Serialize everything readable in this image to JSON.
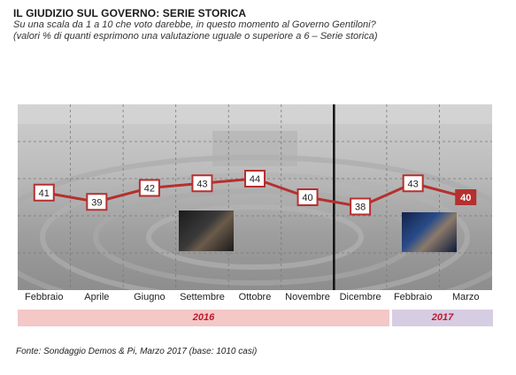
{
  "header": {
    "title": "IL GIUDIZIO SUL GOVERNO: SERIE STORICA",
    "subtitle1": "Su una scala da 1 a 10 che voto darebbe, in questo momento al Governo Gentiloni?",
    "subtitle2": "(valori % di quanti esprimono una valutazione uguale o superiore a 6 – Serie storica)"
  },
  "chart_data": {
    "type": "line",
    "title": "IL GIUDIZIO SUL GOVERNO: SERIE STORICA",
    "categories": [
      "Febbraio",
      "Aprile",
      "Giugno",
      "Settembre",
      "Ottobre",
      "Novembre",
      "Dicembre",
      "Febbraio",
      "Marzo"
    ],
    "series": [
      {
        "values": [
          41,
          39,
          42,
          43,
          44,
          40,
          38,
          43,
          40
        ]
      }
    ],
    "years": [
      {
        "label": "2016",
        "months": 6
      },
      {
        "label": "2017",
        "months": 3
      }
    ],
    "divider_after_index": 5,
    "ylim": [
      20,
      60
    ],
    "grid": true,
    "line_color": "#b5302e",
    "highlight_last": true
  },
  "source": "Fonte: Sondaggio Demos & Pi, Marzo 2017 (base: 1010 casi)"
}
